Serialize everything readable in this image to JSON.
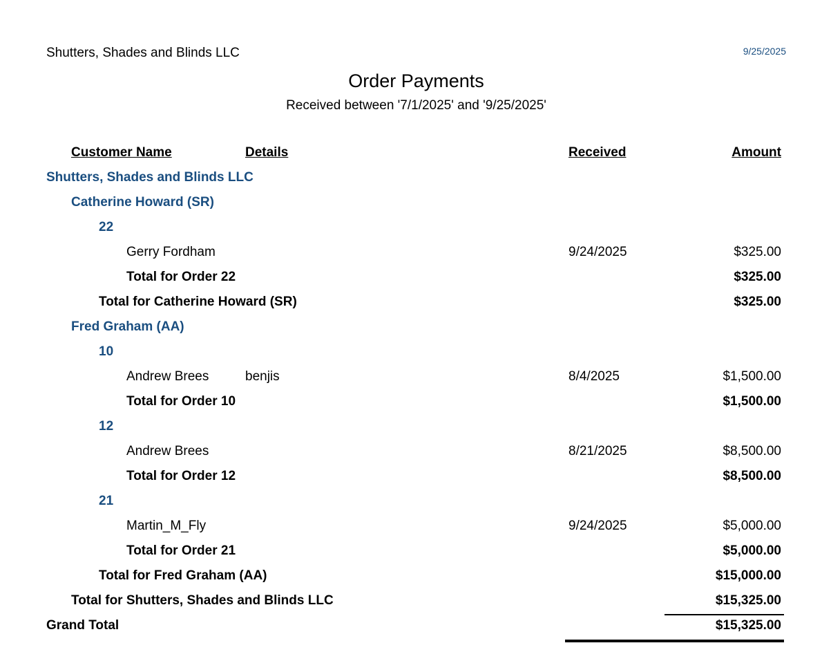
{
  "header": {
    "company": "Shutters, Shades and Blinds LLC",
    "date": "9/25/2025",
    "title": "Order Payments",
    "subtitle": "Received between '7/1/2025' and '9/25/2025'"
  },
  "columns": {
    "customer_name": "Customer Name",
    "details": "Details",
    "received": "Received",
    "amount": "Amount"
  },
  "rows": [
    {
      "type": "company",
      "label": "Shutters, Shades and Blinds LLC"
    },
    {
      "type": "rep",
      "label": "Catherine Howard (SR)"
    },
    {
      "type": "order",
      "label": "22"
    },
    {
      "type": "payment",
      "label": "Gerry Fordham",
      "details": "",
      "received": "9/24/2025",
      "amount": "$325.00"
    },
    {
      "type": "order-total",
      "label": "Total for Order 22",
      "amount": "$325.00"
    },
    {
      "type": "rep-total",
      "label": "Total for Catherine Howard (SR)",
      "amount": "$325.00"
    },
    {
      "type": "rep",
      "label": "Fred Graham (AA)"
    },
    {
      "type": "order",
      "label": "10"
    },
    {
      "type": "payment",
      "label": "Andrew Brees",
      "details": "benjis",
      "received": "8/4/2025",
      "amount": "$1,500.00"
    },
    {
      "type": "order-total",
      "label": "Total for Order 10",
      "amount": "$1,500.00"
    },
    {
      "type": "order",
      "label": "12"
    },
    {
      "type": "payment",
      "label": "Andrew Brees",
      "details": "",
      "received": "8/21/2025",
      "amount": "$8,500.00"
    },
    {
      "type": "order-total",
      "label": "Total for Order 12",
      "amount": "$8,500.00"
    },
    {
      "type": "order",
      "label": "21"
    },
    {
      "type": "payment",
      "label": "Martin_M_Fly",
      "details": "",
      "received": "9/24/2025",
      "amount": "$5,000.00"
    },
    {
      "type": "order-total",
      "label": "Total for Order 21",
      "amount": "$5,000.00"
    },
    {
      "type": "rep-total",
      "label": "Total for Fred Graham (AA)",
      "amount": "$15,000.00"
    },
    {
      "type": "company-total",
      "label": "Total for Shutters, Shades and Blinds LLC",
      "amount": "$15,325.00"
    },
    {
      "type": "grand-total",
      "label": "Grand Total",
      "amount": "$15,325.00"
    }
  ],
  "colors": {
    "accent": "#1a4e80",
    "text": "#000000"
  }
}
